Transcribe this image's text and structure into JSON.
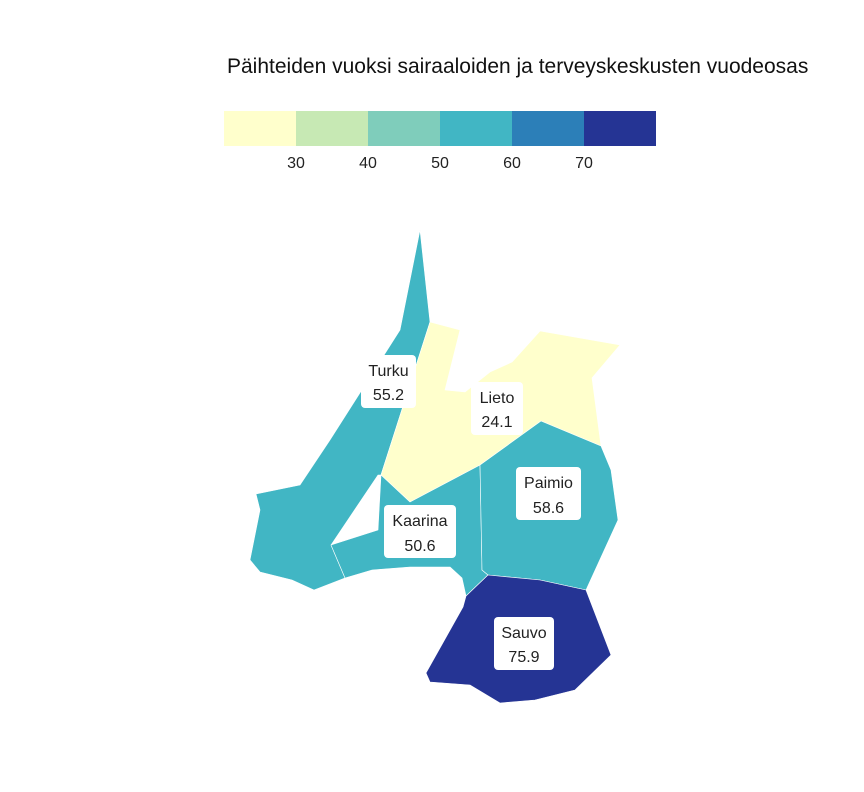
{
  "title": "Päihteiden vuoksi sairaaloiden ja terveyskeskusten vuodeosas",
  "legend": {
    "bins": [
      {
        "color": "#ffffcc"
      },
      {
        "color": "#c7e9b4"
      },
      {
        "color": "#7fcdbb"
      },
      {
        "color": "#41b6c4"
      },
      {
        "color": "#2c7fb8"
      },
      {
        "color": "#253494"
      }
    ],
    "ticks": [
      {
        "value": 30,
        "label": "30"
      },
      {
        "value": 40,
        "label": "40"
      },
      {
        "value": 50,
        "label": "50"
      },
      {
        "value": 60,
        "label": "60"
      },
      {
        "value": 70,
        "label": "70"
      }
    ],
    "min": 20,
    "max": 80
  },
  "regions": [
    {
      "id": "turku",
      "name": "Turku",
      "value": 55.2,
      "value_label": "55.2"
    },
    {
      "id": "lieto",
      "name": "Lieto",
      "value": 24.1,
      "value_label": "24.1"
    },
    {
      "id": "kaarina",
      "name": "Kaarina",
      "value": 50.6,
      "value_label": "50.6"
    },
    {
      "id": "paimio",
      "name": "Paimio",
      "value": 58.6,
      "value_label": "58.6"
    },
    {
      "id": "sauvo",
      "name": "Sauvo",
      "value": 75.9,
      "value_label": "75.9"
    }
  ]
}
